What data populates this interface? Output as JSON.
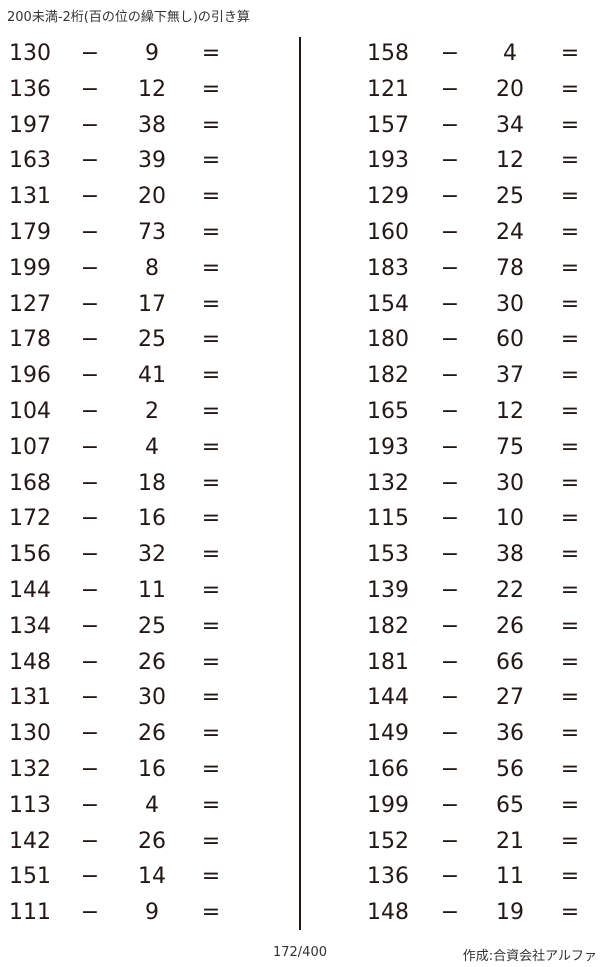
{
  "header": {
    "title": "200未満-2桁(百の位の繰下無し)の引き算"
  },
  "operator": "−",
  "equals": "=",
  "problems": {
    "left": [
      {
        "a": "130",
        "b": "9"
      },
      {
        "a": "136",
        "b": "12"
      },
      {
        "a": "197",
        "b": "38"
      },
      {
        "a": "163",
        "b": "39"
      },
      {
        "a": "131",
        "b": "20"
      },
      {
        "a": "179",
        "b": "73"
      },
      {
        "a": "199",
        "b": "8"
      },
      {
        "a": "127",
        "b": "17"
      },
      {
        "a": "178",
        "b": "25"
      },
      {
        "a": "196",
        "b": "41"
      },
      {
        "a": "104",
        "b": "2"
      },
      {
        "a": "107",
        "b": "4"
      },
      {
        "a": "168",
        "b": "18"
      },
      {
        "a": "172",
        "b": "16"
      },
      {
        "a": "156",
        "b": "32"
      },
      {
        "a": "144",
        "b": "11"
      },
      {
        "a": "134",
        "b": "25"
      },
      {
        "a": "148",
        "b": "26"
      },
      {
        "a": "131",
        "b": "30"
      },
      {
        "a": "130",
        "b": "26"
      },
      {
        "a": "132",
        "b": "16"
      },
      {
        "a": "113",
        "b": "4"
      },
      {
        "a": "142",
        "b": "26"
      },
      {
        "a": "151",
        "b": "14"
      },
      {
        "a": "111",
        "b": "9"
      }
    ],
    "right": [
      {
        "a": "158",
        "b": "4"
      },
      {
        "a": "121",
        "b": "20"
      },
      {
        "a": "157",
        "b": "34"
      },
      {
        "a": "193",
        "b": "12"
      },
      {
        "a": "129",
        "b": "25"
      },
      {
        "a": "160",
        "b": "24"
      },
      {
        "a": "183",
        "b": "78"
      },
      {
        "a": "154",
        "b": "30"
      },
      {
        "a": "180",
        "b": "60"
      },
      {
        "a": "182",
        "b": "37"
      },
      {
        "a": "165",
        "b": "12"
      },
      {
        "a": "193",
        "b": "75"
      },
      {
        "a": "132",
        "b": "30"
      },
      {
        "a": "115",
        "b": "10"
      },
      {
        "a": "153",
        "b": "38"
      },
      {
        "a": "139",
        "b": "22"
      },
      {
        "a": "182",
        "b": "26"
      },
      {
        "a": "181",
        "b": "66"
      },
      {
        "a": "144",
        "b": "27"
      },
      {
        "a": "149",
        "b": "36"
      },
      {
        "a": "166",
        "b": "56"
      },
      {
        "a": "199",
        "b": "65"
      },
      {
        "a": "152",
        "b": "21"
      },
      {
        "a": "136",
        "b": "11"
      },
      {
        "a": "148",
        "b": "19"
      }
    ]
  },
  "footer": {
    "page": "172/400",
    "credit": "作成:合資会社アルファ"
  }
}
